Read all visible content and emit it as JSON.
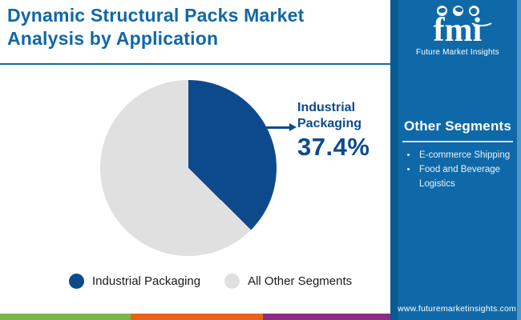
{
  "header": {
    "title_line1": "Dynamic Structural Packs Market",
    "title_line2": "Analysis by Application"
  },
  "logo": {
    "wordmark": "fmi",
    "tagline": "Future Market Insights",
    "icons": [
      "map-icon",
      "plane-icon",
      "globe-icon"
    ]
  },
  "chart_data": {
    "type": "pie",
    "title": "Dynamic Structural Packs Market Analysis by Application",
    "start_angle_deg": 0,
    "segments": [
      {
        "label": "Industrial Packaging",
        "value": 37.4,
        "color": "#0D4A8B"
      },
      {
        "label": "All Other Segments",
        "value": 62.6,
        "color": "#E0E0E0"
      }
    ],
    "callout": {
      "label_line1": "Industrial",
      "label_line2": "Packaging",
      "value": "37.4%"
    }
  },
  "legend": [
    {
      "label": "Industrial Packaging",
      "color": "#0D4A8B"
    },
    {
      "label": "All Other Segments",
      "color": "#E0E0E0"
    }
  ],
  "sidebar": {
    "heading": "Other Segments",
    "items": [
      "E-commerce Shipping",
      "Food and Beverage Logistics"
    ],
    "website": "www.futuremarketinsights.com"
  },
  "footer_stripes": [
    "#7AB648",
    "#E7611B",
    "#8E2C84"
  ],
  "colors": {
    "accent_blue": "#1068A7",
    "sidebar_blue": "#0F69A8",
    "pie_navy": "#0D4A8B",
    "pie_gray": "#E0E0E0",
    "legend_text": "#1B1B1B"
  }
}
